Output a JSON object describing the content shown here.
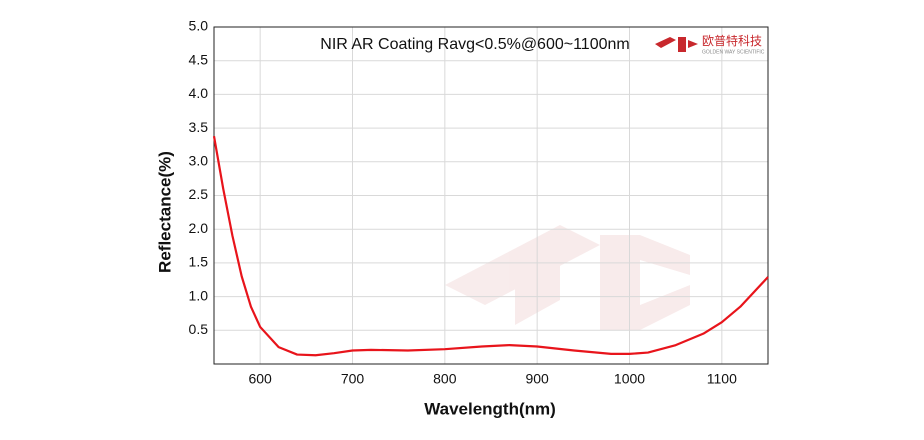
{
  "chart_data": {
    "type": "line",
    "annotation": "NIR AR Coating Ravg<0.5%@600~1100nm",
    "logo": {
      "name": "欧普特科技",
      "subtitle": "GOLDEN WAY SCIENTIFIC"
    },
    "x_label": "Wavelength(nm)",
    "y_label": "Reflectance(%)",
    "x": [
      550,
      560,
      570,
      580,
      590,
      600,
      620,
      640,
      660,
      680,
      700,
      720,
      760,
      800,
      840,
      870,
      900,
      940,
      980,
      1000,
      1020,
      1050,
      1080,
      1100,
      1120,
      1150
    ],
    "series": [
      {
        "name": "Reflectance",
        "color": "#e8141b",
        "values": [
          3.38,
          2.6,
          1.9,
          1.3,
          0.85,
          0.55,
          0.25,
          0.14,
          0.13,
          0.16,
          0.2,
          0.21,
          0.2,
          0.22,
          0.26,
          0.28,
          0.26,
          0.2,
          0.15,
          0.15,
          0.17,
          0.28,
          0.45,
          0.62,
          0.85,
          1.29
        ]
      }
    ],
    "xlim": [
      550,
      1150
    ],
    "xticks": [
      600,
      700,
      800,
      900,
      1000,
      1100
    ],
    "ylim": [
      0,
      5
    ],
    "yticks": [
      0.5,
      {
        "value": 1,
        "label": "1.0"
      },
      1.5,
      {
        "value": 2,
        "label": "2.0"
      },
      2.5,
      {
        "value": 3,
        "label": "3.0"
      },
      3.5,
      {
        "value": 4,
        "label": "4.0"
      },
      4.5,
      {
        "value": 5,
        "label": "5.0"
      }
    ],
    "grid": true
  }
}
